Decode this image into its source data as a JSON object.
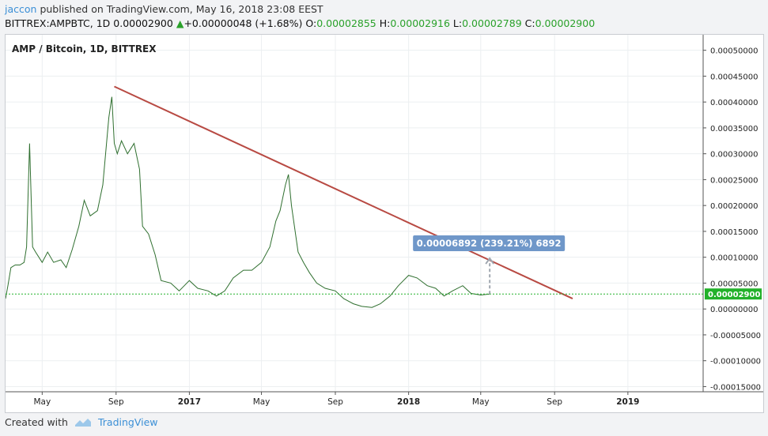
{
  "header": {
    "publisher": "jaccon",
    "published_text": "published on TradingView.com, May 16, 2018 23:08 EEST",
    "symbol": "BITTREX:AMPBTC, 1D",
    "price": "0.00002900",
    "change_arrow": "▲",
    "change": "+0.00000048 (+1.68%)",
    "o_label": "O:",
    "o_value": "0.00002855",
    "h_label": "H:",
    "h_value": "0.00002916",
    "l_label": "L:",
    "l_value": "0.00002789",
    "c_label": "C:",
    "c_value": "0.00002900"
  },
  "footer": {
    "created_with": "Created with",
    "brand": "TradingView"
  },
  "colors": {
    "candles": "#2f6f2f",
    "trendline": "#b84a43",
    "price_label_bg": "#22b12a",
    "measure_bg": "#6f97c9",
    "link": "#3b8fd6"
  },
  "chart_data": {
    "type": "line",
    "title": "AMP / Bitcoin, 1D, BITTREX",
    "x_ticks": [
      "May",
      "Sep",
      "2017",
      "May",
      "Sep",
      "2018",
      "May",
      "Sep",
      "2019"
    ],
    "y_ticks": [
      "0.00050000",
      "0.00045000",
      "0.00040000",
      "0.00035000",
      "0.00030000",
      "0.00025000",
      "0.00020000",
      "0.00015000",
      "0.00010000",
      "0.00005000",
      "0.00000000",
      "-0.00005000",
      "-0.00010000",
      "-0.00015000"
    ],
    "ylim": [
      -0.00016,
      0.00053
    ],
    "xlim": [
      "2016-03-01",
      "2019-05-01"
    ],
    "series": [
      {
        "x": [
          "2016-03-01",
          "2016-03-05",
          "2016-03-10",
          "2016-03-17",
          "2016-03-25",
          "2016-04-01",
          "2016-04-05",
          "2016-04-10",
          "2016-04-15",
          "2016-04-20",
          "2016-05-01",
          "2016-05-10",
          "2016-05-20",
          "2016-06-01",
          "2016-06-10",
          "2016-06-20",
          "2016-07-01",
          "2016-07-10",
          "2016-07-20",
          "2016-08-01",
          "2016-08-10",
          "2016-08-20",
          "2016-08-25",
          "2016-08-29",
          "2016-09-03",
          "2016-09-10",
          "2016-09-20",
          "2016-10-01",
          "2016-10-10",
          "2016-10-15",
          "2016-10-25",
          "2016-11-05",
          "2016-11-15",
          "2016-12-01",
          "2016-12-15",
          "2017-01-01",
          "2017-01-15",
          "2017-02-01",
          "2017-02-15",
          "2017-03-01",
          "2017-03-15",
          "2017-04-01",
          "2017-04-15",
          "2017-05-01",
          "2017-05-15",
          "2017-05-25",
          "2017-06-01",
          "2017-06-10",
          "2017-06-15",
          "2017-06-20",
          "2017-07-01",
          "2017-07-10",
          "2017-07-20",
          "2017-08-01",
          "2017-08-15",
          "2017-09-01",
          "2017-09-15",
          "2017-10-01",
          "2017-10-15",
          "2017-11-01",
          "2017-11-15",
          "2017-12-01",
          "2017-12-15",
          "2018-01-01",
          "2018-01-15",
          "2018-02-01",
          "2018-02-15",
          "2018-03-01",
          "2018-03-15",
          "2018-04-01",
          "2018-04-15",
          "2018-05-01",
          "2018-05-16"
        ],
        "y": [
          2e-05,
          4.5e-05,
          8e-05,
          8.5e-05,
          8.5e-05,
          9e-05,
          0.00012,
          0.00032,
          0.00012,
          0.00011,
          9e-05,
          0.00011,
          9e-05,
          9.5e-05,
          8e-05,
          0.000115,
          0.00016,
          0.00021,
          0.00018,
          0.00019,
          0.00024,
          0.00037,
          0.00041,
          0.00032,
          0.0003,
          0.000325,
          0.0003,
          0.00032,
          0.00027,
          0.00016,
          0.000145,
          0.000105,
          5.5e-05,
          5e-05,
          3.5e-05,
          5.5e-05,
          4e-05,
          3.5e-05,
          2.5e-05,
          3.5e-05,
          6e-05,
          7.5e-05,
          7.5e-05,
          9e-05,
          0.00012,
          0.00017,
          0.00019,
          0.00024,
          0.00026,
          0.0002,
          0.00011,
          9e-05,
          7e-05,
          5e-05,
          4e-05,
          3.5e-05,
          2e-05,
          1e-05,
          5e-06,
          3e-06,
          1e-05,
          2.5e-05,
          4.5e-05,
          6.5e-05,
          6e-05,
          4.5e-05,
          4e-05,
          2.5e-05,
          3.5e-05,
          4.5e-05,
          3e-05,
          2.7e-05,
          2.9e-05
        ]
      }
    ],
    "trendline": {
      "x1": "2016-08-29",
      "y1": 0.00043,
      "x2": "2018-10-01",
      "y2": 2e-05
    },
    "last_price_label": "0.00002900",
    "measure_label": "0.00006892 (239.21%) 6892",
    "grid": true,
    "y_axis_position": "right"
  }
}
